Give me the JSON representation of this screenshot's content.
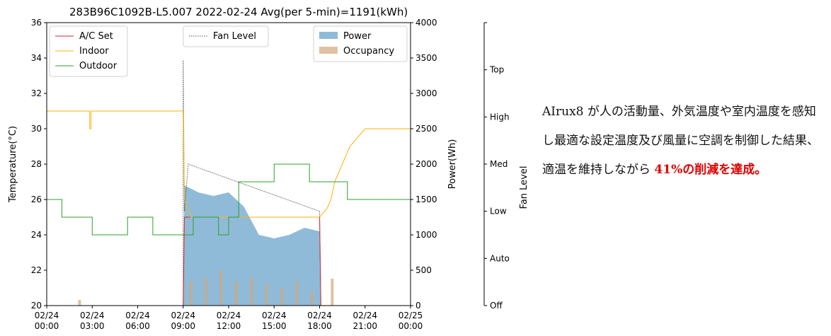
{
  "chart_data": {
    "type": "line",
    "title": "283B96C1092B-L5.007 2022-02-24 Avg(per 5-min)=1191(kWh)",
    "xlabel": "",
    "ylabel": "Temperature(°C)",
    "y2label": "Power(Wh)",
    "y3label": "Fan Level",
    "x_range": [
      "2022-02-24 00:00",
      "2022-02-25 00:00"
    ],
    "x_ticks": [
      "02/24\n00:00",
      "02/24\n03:00",
      "02/24\n06:00",
      "02/24\n09:00",
      "02/24\n12:00",
      "02/24\n15:00",
      "02/24\n18:00",
      "02/24\n21:00",
      "02/25\n00:00"
    ],
    "ylim": [
      20,
      36
    ],
    "y_ticks": [
      20,
      22,
      24,
      26,
      28,
      30,
      32,
      34,
      36
    ],
    "y2lim": [
      0,
      4000
    ],
    "y2_ticks": [
      0,
      500,
      1000,
      1500,
      2000,
      2500,
      3000,
      3500,
      4000
    ],
    "fan_levels": [
      "Off",
      "Auto",
      "Low",
      "Med",
      "High",
      "Top"
    ],
    "legend_left": [
      "A/C Set",
      "Indoor",
      "Outdoor"
    ],
    "legend_middle": [
      "Fan Level"
    ],
    "legend_right": [
      "Power",
      "Occupancy"
    ],
    "series": [
      {
        "name": "A/C Set",
        "color": "#d62728",
        "axis": "temperature",
        "points": [
          [
            "09:00",
            20
          ],
          [
            "09:05",
            25
          ],
          [
            "18:00",
            25
          ],
          [
            "18:05",
            20
          ]
        ]
      },
      {
        "name": "Indoor",
        "color": "#ffb300",
        "axis": "temperature",
        "points": [
          [
            "00:00",
            31
          ],
          [
            "02:50",
            31
          ],
          [
            "02:50",
            30
          ],
          [
            "02:55",
            30
          ],
          [
            "02:55",
            31
          ],
          [
            "09:00",
            31
          ],
          [
            "09:05",
            26
          ],
          [
            "09:30",
            25
          ],
          [
            "18:00",
            25
          ],
          [
            "18:30",
            25.5
          ],
          [
            "18:45",
            26
          ],
          [
            "19:00",
            27
          ],
          [
            "19:30",
            28
          ],
          [
            "20:00",
            29
          ],
          [
            "21:00",
            30
          ],
          [
            "24:00",
            30
          ]
        ]
      },
      {
        "name": "Outdoor",
        "color": "#2ca02c",
        "axis": "temperature",
        "points": [
          [
            "00:00",
            26
          ],
          [
            "01:00",
            26
          ],
          [
            "01:00",
            25
          ],
          [
            "03:00",
            25
          ],
          [
            "03:00",
            24
          ],
          [
            "05:20",
            24
          ],
          [
            "05:20",
            25
          ],
          [
            "07:00",
            25
          ],
          [
            "07:00",
            24
          ],
          [
            "09:40",
            24
          ],
          [
            "09:40",
            25
          ],
          [
            "11:20",
            25
          ],
          [
            "11:20",
            24
          ],
          [
            "12:00",
            24
          ],
          [
            "12:00",
            25
          ],
          [
            "12:40",
            25
          ],
          [
            "12:40",
            27
          ],
          [
            "15:00",
            27
          ],
          [
            "15:00",
            28
          ],
          [
            "17:20",
            28
          ],
          [
            "17:20",
            27
          ],
          [
            "19:50",
            27
          ],
          [
            "19:50",
            26
          ],
          [
            "24:00",
            26
          ]
        ]
      },
      {
        "name": "Fan Level",
        "color": "#555555",
        "axis": "fan",
        "points": [
          [
            "00:00",
            0
          ],
          [
            "09:00",
            0
          ],
          [
            "09:00",
            5.2
          ],
          [
            "09:05",
            2
          ],
          [
            "09:20",
            3
          ],
          [
            "18:00",
            2
          ],
          [
            "18:05",
            0
          ],
          [
            "24:00",
            0
          ]
        ]
      },
      {
        "name": "Power",
        "color": "#1f77b4",
        "axis": "power",
        "kind": "area",
        "points": [
          [
            "09:00",
            0
          ],
          [
            "09:05",
            1700
          ],
          [
            "10:00",
            1600
          ],
          [
            "11:00",
            1550
          ],
          [
            "12:00",
            1600
          ],
          [
            "13:00",
            1400
          ],
          [
            "14:00",
            1000
          ],
          [
            "15:00",
            950
          ],
          [
            "16:00",
            1000
          ],
          [
            "17:00",
            1100
          ],
          [
            "18:00",
            1050
          ],
          [
            "18:05",
            0
          ]
        ]
      },
      {
        "name": "Occupancy",
        "color": "#d2a679",
        "axis": "power",
        "kind": "bars",
        "points": [
          [
            "02:10",
            80
          ],
          [
            "09:30",
            350
          ],
          [
            "10:30",
            400
          ],
          [
            "11:30",
            500
          ],
          [
            "12:30",
            350
          ],
          [
            "13:30",
            400
          ],
          [
            "14:30",
            300
          ],
          [
            "15:30",
            250
          ],
          [
            "16:30",
            350
          ],
          [
            "17:30",
            200
          ],
          [
            "18:50",
            380
          ]
        ]
      }
    ]
  },
  "side_text": {
    "part1": "AIrux8 が人の活動量、外気温度や室内温度を感知し最適な設定温度及び風量に空調を制御した結果、適温を維持しながら ",
    "highlight": "41%の削減を達成。"
  }
}
